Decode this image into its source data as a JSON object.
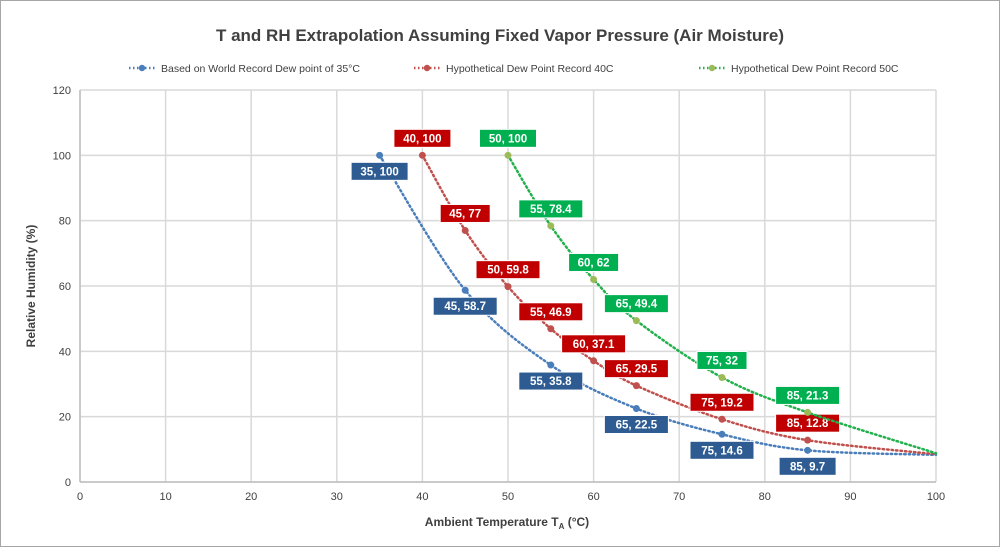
{
  "chart_data": {
    "type": "line",
    "title": "T and RH Extrapolation Assuming Fixed Vapor Pressure (Air Moisture)",
    "xlabel": "Ambient Temperature T",
    "xlabel_sub": "A",
    "xlabel_unit": " (°C)",
    "ylabel": "Relative Humidity (%)",
    "xlim": [
      0,
      100
    ],
    "ylim": [
      0,
      120
    ],
    "xticks": [
      0,
      10,
      20,
      30,
      40,
      50,
      60,
      70,
      80,
      90,
      100
    ],
    "yticks": [
      0,
      20,
      40,
      60,
      80,
      100,
      120
    ],
    "grid": true,
    "legend_position": "top",
    "series": [
      {
        "name": "Based on World Record Dew point of 35°C",
        "color": "#4a7ebb",
        "label_color": "#2e5c92",
        "label_position": "below",
        "x": [
          35,
          45,
          55,
          65,
          75,
          85
        ],
        "y": [
          100,
          58.7,
          35.8,
          22.5,
          14.6,
          9.7
        ],
        "labels": [
          "35, 100",
          "45, 58.7",
          "55, 35.8",
          "65, 22.5",
          "75, 14.6",
          "85, 9.7"
        ],
        "line_to": [
          100,
          8.3
        ]
      },
      {
        "name": "Hypothetical Dew Point Record 40C",
        "color": "#c0504d",
        "label_color": "#c00000",
        "label_position": "above",
        "x": [
          40,
          45,
          50,
          55,
          60,
          65,
          75,
          85
        ],
        "y": [
          100,
          77,
          59.8,
          46.9,
          37.1,
          29.5,
          19.2,
          12.8
        ],
        "labels": [
          "40, 100",
          "45, 77",
          "50, 59.8",
          "55, 46.9",
          "60, 37.1",
          "65, 29.5",
          "75, 19.2",
          "85, 12.8"
        ],
        "line_to": [
          100,
          8.5
        ]
      },
      {
        "name": "Hypothetical Dew Point Record 50C",
        "color": "#22b14c",
        "point_color": "#9bbb59",
        "label_color": "#00b050",
        "label_position": "above",
        "x": [
          50,
          55,
          60,
          65,
          75,
          85
        ],
        "y": [
          100,
          78.4,
          62,
          49.4,
          32,
          21.3
        ],
        "labels": [
          "50, 100",
          "55, 78.4",
          "60, 62",
          "65, 49.4",
          "75, 32",
          "85, 21.3"
        ],
        "line_to": [
          100,
          8.8
        ]
      }
    ]
  }
}
